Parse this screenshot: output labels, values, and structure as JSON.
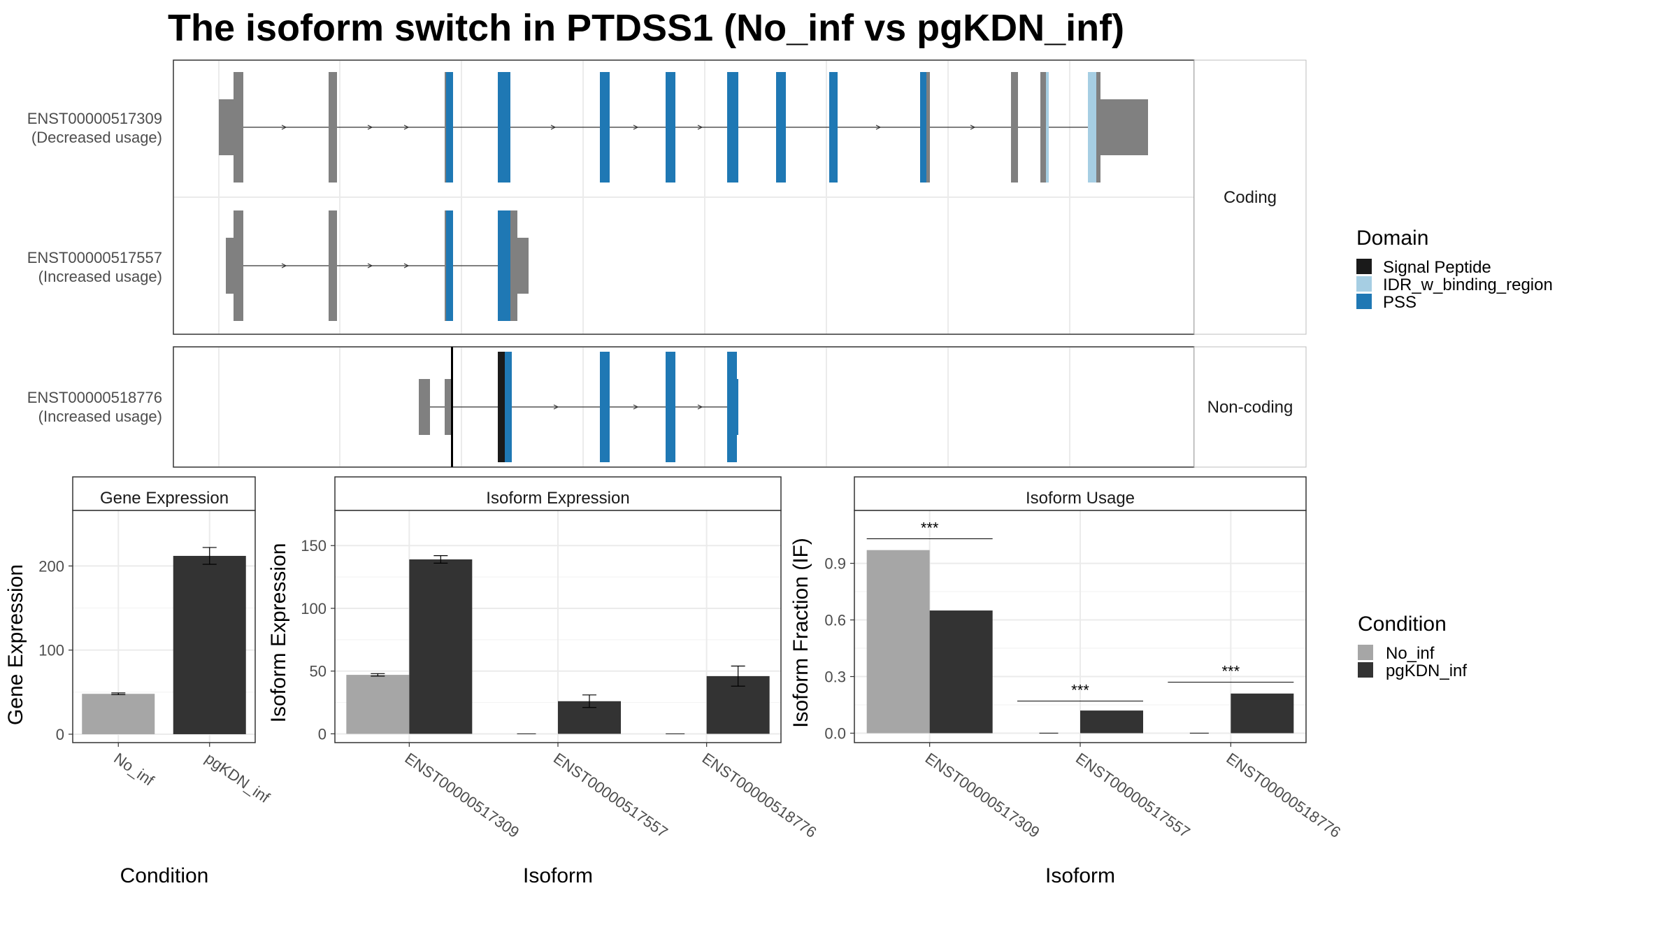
{
  "title": "The isoform switch in PTDSS1 (No_inf vs pgKDN_inf)",
  "structure": {
    "facets": [
      {
        "label": "Coding",
        "isoforms": [
          {
            "id": "ENST00000517309",
            "usage": "(Decreased usage)"
          },
          {
            "id": "ENST00000517557",
            "usage": "(Increased usage)"
          }
        ]
      },
      {
        "label": "Non-coding",
        "isoforms": [
          {
            "id": "ENST00000518776",
            "usage": "(Increased usage)"
          }
        ]
      }
    ],
    "domain_legend": {
      "title": "Domain",
      "items": [
        {
          "label": "Signal Peptide",
          "color": "#1a1a1a"
        },
        {
          "label": "IDR_w_binding_region",
          "color": "#a6cee3"
        },
        {
          "label": "PSS",
          "color": "#1f78b4"
        }
      ]
    },
    "colors": {
      "exon": "#808080",
      "intron": "#333333"
    }
  },
  "condition_legend": {
    "title": "Condition",
    "items": [
      {
        "label": "No_inf",
        "color": "#a6a6a6"
      },
      {
        "label": "pgKDN_inf",
        "color": "#333333"
      }
    ]
  },
  "chart_data": [
    {
      "type": "bar",
      "strip": "Gene Expression",
      "xlabel": "Condition",
      "ylabel": "Gene Expression",
      "categories": [
        "No_inf",
        "pgKDN_inf"
      ],
      "values": [
        48,
        212
      ],
      "errors": [
        1,
        10
      ],
      "ylim": [
        -10,
        266
      ],
      "yticks": [
        0,
        100,
        200
      ]
    },
    {
      "type": "bar",
      "strip": "Isoform Expression",
      "xlabel": "Isoform",
      "ylabel": "Isoform Expression",
      "categories": [
        "ENST00000517309",
        "ENST00000517557",
        "ENST00000518776"
      ],
      "series": [
        {
          "name": "No_inf",
          "values": [
            47,
            0,
            0
          ],
          "errors": [
            1,
            0,
            0
          ]
        },
        {
          "name": "pgKDN_inf",
          "values": [
            139,
            26,
            46
          ],
          "errors": [
            3,
            5,
            8
          ]
        }
      ],
      "ylim": [
        -7,
        178
      ],
      "yticks": [
        0,
        50,
        100,
        150
      ]
    },
    {
      "type": "bar",
      "strip": "Isoform Usage",
      "xlabel": "Isoform",
      "ylabel": "Isoform Fraction (IF)",
      "categories": [
        "ENST00000517309",
        "ENST00000517557",
        "ENST00000518776"
      ],
      "series": [
        {
          "name": "No_inf",
          "values": [
            0.97,
            0.0,
            0.0
          ]
        },
        {
          "name": "pgKDN_inf",
          "values": [
            0.65,
            0.12,
            0.21
          ]
        }
      ],
      "significance": [
        {
          "category": 0,
          "label": "***",
          "y": 1.03
        },
        {
          "category": 1,
          "label": "***",
          "y": 0.17
        },
        {
          "category": 2,
          "label": "***",
          "y": 0.27
        }
      ],
      "ylim": [
        -0.05,
        1.18
      ],
      "yticks": [
        0.0,
        0.3,
        0.6,
        0.9
      ],
      "ytick_labels": [
        "0.0",
        "0.3",
        "0.6",
        "0.9"
      ]
    }
  ]
}
